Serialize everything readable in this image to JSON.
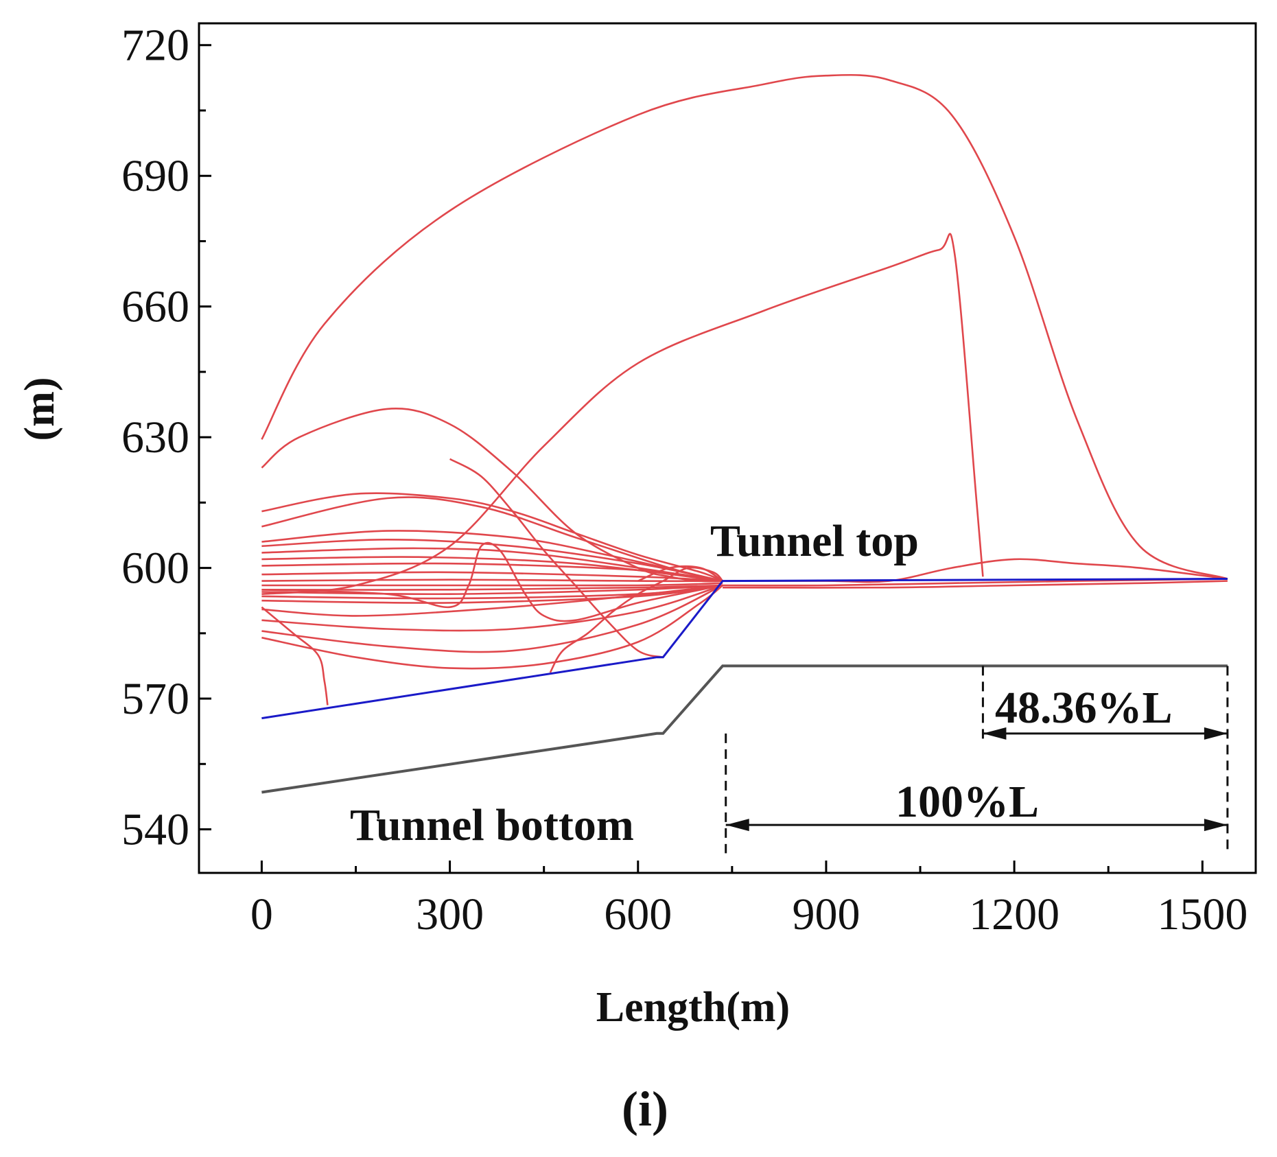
{
  "chart_data": {
    "type": "line",
    "panel_label": "(i)",
    "xlabel": "Length(m)",
    "ylabel": "(m)",
    "xlim": [
      -100,
      1585
    ],
    "ylim": [
      530,
      725
    ],
    "x_ticks": [
      0,
      300,
      600,
      900,
      1200,
      1500
    ],
    "y_ticks": [
      540,
      570,
      600,
      630,
      660,
      690,
      720
    ],
    "colors": {
      "streamline": "#e0474c",
      "tunnel_top": "#1a1ac8",
      "tunnel_bottom": "#555555",
      "annotation": "#111111"
    },
    "annotations": {
      "tunnel_top": "Tunnel top",
      "tunnel_bottom": "Tunnel bottom",
      "full_length": "100%L",
      "partial_length": "48.36%L"
    },
    "dimension_lines": {
      "full": {
        "from_x": 740,
        "to_x": 1540,
        "y": 541
      },
      "partial": {
        "from_x": 1150,
        "to_x": 1540,
        "y": 562
      }
    },
    "tunnel_top": {
      "name": "Tunnel top",
      "x": [
        0,
        630,
        640,
        735,
        1540
      ],
      "y": [
        565.5,
        579.5,
        579.5,
        597,
        597.5
      ]
    },
    "tunnel_bottom": {
      "name": "Tunnel bottom",
      "x": [
        0,
        630,
        640,
        735,
        1540
      ],
      "y": [
        548.5,
        562,
        562,
        577.5,
        577.5
      ]
    },
    "series": [
      {
        "name": "streamline-1",
        "x": [
          0,
          100,
          300,
          600,
          800,
          900,
          1000,
          1100,
          1200,
          1300,
          1400,
          1540
        ],
        "y": [
          629.5,
          656,
          682,
          704,
          711,
          713,
          712,
          704,
          676,
          634,
          605,
          597.5
        ]
      },
      {
        "name": "streamline-2",
        "x": [
          0,
          60,
          200,
          300,
          400,
          500,
          600,
          650,
          700,
          735
        ],
        "y": [
          623,
          630,
          636.5,
          633,
          622,
          608,
          600,
          598,
          597,
          597
        ]
      },
      {
        "name": "streamline-3",
        "x": [
          0,
          150,
          300,
          450,
          600,
          800,
          1000,
          1080,
          1105,
          1140,
          1150
        ],
        "y": [
          594,
          596,
          605,
          628,
          647,
          659,
          669,
          673,
          672,
          615,
          598
        ]
      },
      {
        "name": "streamline-4",
        "x": [
          0,
          150,
          300,
          400,
          500,
          600,
          700,
          735
        ],
        "y": [
          613,
          617,
          616,
          613,
          608,
          603,
          599,
          597
        ]
      },
      {
        "name": "streamline-5",
        "x": [
          0,
          200,
          350,
          500,
          650,
          735
        ],
        "y": [
          609.5,
          616,
          614,
          607,
          600,
          597
        ]
      },
      {
        "name": "streamline-6",
        "x": [
          0,
          200,
          400,
          550,
          735
        ],
        "y": [
          606,
          608.5,
          607,
          603,
          597
        ]
      },
      {
        "name": "streamline-7",
        "x": [
          0,
          200,
          400,
          600,
          735
        ],
        "y": [
          605,
          606.5,
          605,
          601,
          597
        ]
      },
      {
        "name": "streamline-8",
        "x": [
          0,
          250,
          450,
          735
        ],
        "y": [
          603.5,
          604.5,
          603,
          597
        ]
      },
      {
        "name": "streamline-9",
        "x": [
          0,
          250,
          500,
          735
        ],
        "y": [
          602,
          602.5,
          601,
          597
        ]
      },
      {
        "name": "streamline-10",
        "x": [
          0,
          300,
          600,
          735
        ],
        "y": [
          600.5,
          601,
          599.5,
          597
        ]
      },
      {
        "name": "streamline-11",
        "x": [
          0,
          300,
          600,
          735
        ],
        "y": [
          598.5,
          599,
          598,
          597
        ]
      },
      {
        "name": "streamline-12",
        "x": [
          0,
          300,
          600,
          735
        ],
        "y": [
          597,
          597.3,
          597,
          597
        ]
      },
      {
        "name": "streamline-13",
        "x": [
          0,
          300,
          600,
          735
        ],
        "y": [
          596,
          596,
          596,
          596.5
        ]
      },
      {
        "name": "streamline-14",
        "x": [
          0,
          300,
          600,
          735
        ],
        "y": [
          595,
          595,
          595.5,
          596
        ]
      },
      {
        "name": "streamline-15",
        "x": [
          0,
          300,
          600,
          735
        ],
        "y": [
          594.5,
          594,
          595,
          596
        ]
      },
      {
        "name": "streamline-16",
        "x": [
          0,
          300,
          600,
          735
        ],
        "y": [
          593.5,
          593,
          594,
          596
        ]
      },
      {
        "name": "streamline-17",
        "x": [
          0,
          300,
          600,
          735
        ],
        "y": [
          592.5,
          592,
          593.5,
          596
        ]
      },
      {
        "name": "streamline-18",
        "x": [
          0,
          150,
          350,
          550,
          735
        ],
        "y": [
          590.5,
          589,
          590.5,
          593,
          596
        ]
      },
      {
        "name": "streamline-19",
        "x": [
          0,
          200,
          400,
          600,
          735
        ],
        "y": [
          588,
          586,
          586,
          590,
          596
        ]
      },
      {
        "name": "streamline-20",
        "x": [
          0,
          200,
          400,
          600,
          735
        ],
        "y": [
          585.5,
          582,
          581,
          587,
          596
        ]
      },
      {
        "name": "streamline-21",
        "x": [
          0,
          150,
          300,
          450,
          600,
          700,
          735
        ],
        "y": [
          584,
          579.5,
          577,
          578,
          583,
          592,
          596
        ]
      },
      {
        "name": "streamline-22",
        "x": [
          0,
          50,
          90,
          100,
          105
        ],
        "y": [
          591,
          585,
          580,
          574,
          568.5
        ]
      },
      {
        "name": "streamline-23",
        "x": [
          0,
          200,
          300,
          330,
          350,
          380,
          420,
          450,
          500,
          600,
          700,
          735
        ],
        "y": [
          595,
          594,
          591,
          596,
          605,
          604,
          594,
          589,
          588,
          592,
          595,
          596
        ]
      },
      {
        "name": "streamline-24",
        "x": [
          300,
          350,
          400,
          450,
          500,
          550,
          600,
          640
        ],
        "y": [
          625,
          621,
          613,
          604,
          596,
          588,
          581,
          579.5
        ]
      },
      {
        "name": "streamline-25",
        "x": [
          460,
          480,
          520,
          560,
          600,
          640,
          680,
          720,
          735
        ],
        "y": [
          576,
          581,
          585,
          590,
          594,
          597,
          600,
          599,
          597
        ]
      },
      {
        "name": "streamline-26",
        "x": [
          600,
          650,
          700,
          735
        ],
        "y": [
          597,
          600,
          600,
          597
        ]
      },
      {
        "name": "streamline-27",
        "x": [
          735,
          900,
          1000,
          1100,
          1200,
          1300,
          1400,
          1540
        ],
        "y": [
          597,
          597,
          597,
          600,
          602,
          601,
          600,
          597.5
        ]
      },
      {
        "name": "streamline-28",
        "x": [
          735,
          900,
          1100,
          1300,
          1540
        ],
        "y": [
          596,
          596,
          596.5,
          597,
          597.5
        ]
      },
      {
        "name": "streamline-29",
        "x": [
          735,
          1000,
          1200,
          1400,
          1540
        ],
        "y": [
          595.5,
          595.5,
          596,
          596.5,
          597
        ]
      }
    ]
  }
}
